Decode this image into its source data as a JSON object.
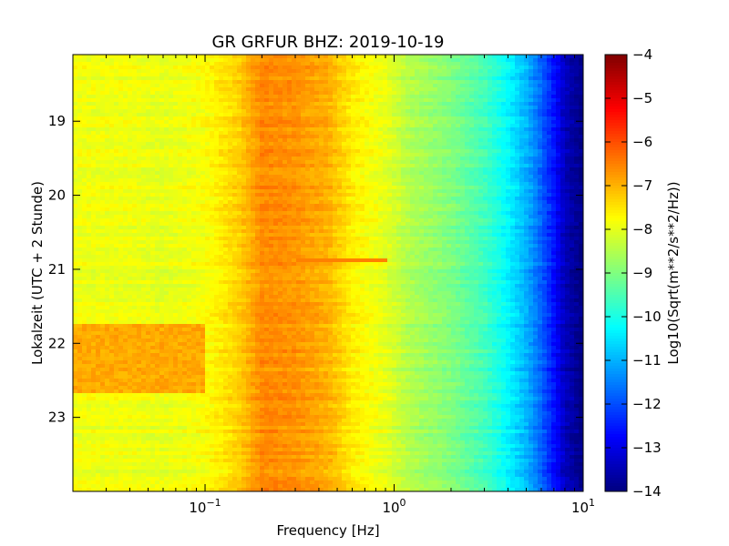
{
  "chart_data": {
    "type": "heatmap",
    "title": "GR GRFUR BHZ: 2019-10-19",
    "xlabel": "Frequency [Hz]",
    "ylabel": "Lokalzeit (UTC + 2 Stunde)",
    "xscale": "log",
    "xlim": [
      0.02,
      10
    ],
    "ylim": [
      24,
      18.1
    ],
    "x_ticks": [
      {
        "value": 0.1,
        "base": "10",
        "exp": "−1"
      },
      {
        "value": 1,
        "base": "10",
        "exp": "0"
      },
      {
        "value": 10,
        "base": "10",
        "exp": "1"
      }
    ],
    "y_ticks": [
      {
        "value": 19,
        "label": "19"
      },
      {
        "value": 20,
        "label": "20"
      },
      {
        "value": 21,
        "label": "21"
      },
      {
        "value": 22,
        "label": "22"
      },
      {
        "value": 23,
        "label": "23"
      }
    ],
    "colorbar": {
      "label": "Log10(Sqrt(m**2/s**2/Hz))",
      "colormap": "jet",
      "range": [
        -14,
        -4
      ],
      "ticks": [
        {
          "value": -4,
          "label": "−4"
        },
        {
          "value": -5,
          "label": "−5"
        },
        {
          "value": -6,
          "label": "−6"
        },
        {
          "value": -7,
          "label": "−7"
        },
        {
          "value": -8,
          "label": "−8"
        },
        {
          "value": -9,
          "label": "−9"
        },
        {
          "value": -10,
          "label": "−10"
        },
        {
          "value": -11,
          "label": "−11"
        },
        {
          "value": -12,
          "label": "−12"
        },
        {
          "value": -13,
          "label": "−13"
        },
        {
          "value": -14,
          "label": "−14"
        }
      ]
    },
    "spectral_profile": {
      "frequencies": [
        0.02,
        0.04,
        0.06,
        0.1,
        0.15,
        0.2,
        0.3,
        0.45,
        0.6,
        0.9,
        1.2,
        2,
        3,
        4,
        5,
        6,
        7,
        8,
        10
      ],
      "values": [
        -7.9,
        -7.9,
        -8.0,
        -7.8,
        -7.3,
        -6.6,
        -6.7,
        -7.0,
        -7.6,
        -8.0,
        -8.5,
        -9.0,
        -9.6,
        -10.3,
        -11.0,
        -11.8,
        -12.6,
        -13.4,
        -14.0
      ]
    },
    "events": [
      {
        "time": 20.88,
        "f_min": 0.3,
        "f_max": 0.9,
        "value": -6.5
      },
      {
        "time_start": 21.75,
        "time_end": 22.65,
        "f_min": 0.02,
        "f_max": 0.1,
        "value": -6.9
      }
    ]
  }
}
